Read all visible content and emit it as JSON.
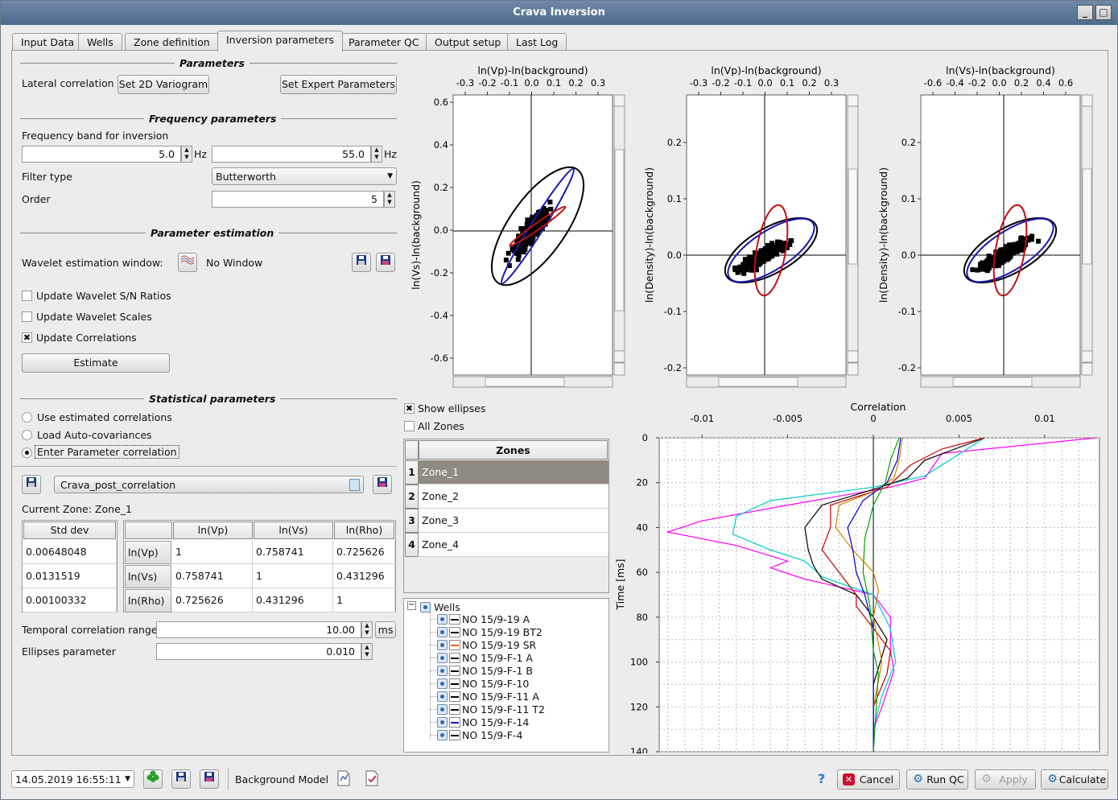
{
  "window": {
    "title": "Crava Inversion"
  },
  "tabs": [
    "Input Data",
    "Wells",
    "Zone definition",
    "Inversion parameters",
    "Parameter QC",
    "Output setup",
    "Last Log"
  ],
  "parameters": {
    "title": "Parameters",
    "lateral_label": "Lateral correlation",
    "variogram_btn": "Set 2D Variogram",
    "expert_btn": "Set Expert Parameters"
  },
  "frequency": {
    "title": "Frequency parameters",
    "band_label": "Frequency band for inversion",
    "low": "5.0",
    "high": "55.0",
    "unit": "Hz",
    "filter_label": "Filter type",
    "filter_value": "Butterworth",
    "order_label": "Order",
    "order_value": "5"
  },
  "estimation": {
    "title": "Parameter estimation",
    "wavelet_label": "Wavelet estimation window:",
    "wavelet_value": "No Window",
    "cb_sn": "Update Wavelet S/N Ratios",
    "cb_scales": "Update Wavelet Scales",
    "cb_corr": "Update Correlations",
    "estimate_btn": "Estimate"
  },
  "statistical": {
    "title": "Statistical parameters",
    "r1": "Use estimated correlations",
    "r2": "Load Auto-covariances",
    "r3": "Enter Parameter correlation",
    "file": "Crava_post_correlation",
    "current_zone": "Current Zone: Zone_1",
    "std_header": "Std dev",
    "std": [
      "0.00648048",
      "0.0131519",
      "0.00100332"
    ],
    "corr_headers": [
      "ln(Vp)",
      "ln(Vs)",
      "ln(Rho)"
    ],
    "row_headers": [
      "ln(Vp)",
      "ln(Vs)",
      "ln(Rho)"
    ],
    "corr": [
      [
        "1",
        "0.758741",
        "0.725626"
      ],
      [
        "0.758741",
        "1",
        "0.431296"
      ],
      [
        "0.725626",
        "0.431296",
        "1"
      ]
    ],
    "temporal_label": "Temporal correlation range",
    "temporal_value": "10.00",
    "temporal_unit": "ms",
    "ellipses_label": "Ellipses parameter",
    "ellipses_value": "0.010"
  },
  "scatter": [
    {
      "title": "ln(Vp)-ln(background)",
      "ylabel": "ln(Vs)-ln(background)",
      "xticks": [
        "-0.3",
        "-0.2",
        "-0.1",
        "0.0",
        "0.1",
        "0.2",
        "0.3"
      ],
      "yticks": [
        "0.6",
        "0.4",
        "0.2",
        "0.0",
        "-0.2",
        "-0.4",
        "-0.6"
      ]
    },
    {
      "title": "ln(Vp)-ln(background)",
      "ylabel": "ln(Density)-ln(background)",
      "xticks": [
        "-0.3",
        "-0.2",
        "-0.1",
        "0.0",
        "0.1",
        "0.2",
        "0.3"
      ],
      "yticks": [
        "0.2",
        "0.1",
        "0.0",
        "-0.1",
        "-0.2"
      ]
    },
    {
      "title": "ln(Vs)-ln(background)",
      "ylabel": "ln(Density)-ln(background)",
      "xticks": [
        "-0.6",
        "-0.4",
        "-0.2",
        "0.0",
        "0.2",
        "0.4",
        "0.6"
      ],
      "yticks": [
        "0.2",
        "0.1",
        "0.0",
        "-0.1",
        "-0.2"
      ]
    }
  ],
  "show_ellipses": "Show ellipses",
  "all_zones": "All Zones",
  "zones": {
    "header": "Zones",
    "items": [
      "Zone_1",
      "Zone_2",
      "Zone_3",
      "Zone_4"
    ],
    "selected": 0
  },
  "wells": {
    "root": "Wells",
    "items": [
      {
        "name": "NO 15/9-19 A",
        "color": "#000000"
      },
      {
        "name": "NO 15/9-19 BT2",
        "color": "#000000"
      },
      {
        "name": "NO 15/9-19 SR",
        "color": "#e06010"
      },
      {
        "name": "NO 15/9-F-1 A",
        "color": "#000000"
      },
      {
        "name": "NO 15/9-F-1 B",
        "color": "#000000"
      },
      {
        "name": "NO 15/9-F-10",
        "color": "#000000"
      },
      {
        "name": "NO 15/9-F-11 A",
        "color": "#000000"
      },
      {
        "name": "NO 15/9-F-11 T2",
        "color": "#000000"
      },
      {
        "name": "NO 15/9-F-14",
        "color": "#1010d0"
      },
      {
        "name": "NO 15/9-F-4",
        "color": "#000000"
      }
    ]
  },
  "chart_data": {
    "type": "line",
    "title": "Correlation",
    "ylabel": "Time [ms]",
    "xlim": [
      -0.0125,
      0.0132
    ],
    "ylim": [
      0,
      140
    ],
    "xticks": [
      "-0.01",
      "-0.005",
      "0",
      "0.005",
      "0.01"
    ],
    "yticks": [
      "0",
      "20",
      "40",
      "60",
      "80",
      "100",
      "120",
      "140"
    ],
    "series": [
      {
        "color": "#ff00ff",
        "values": [
          [
            0.013,
            0
          ],
          [
            0.004,
            7
          ],
          [
            0.003,
            18
          ],
          [
            0.001,
            22
          ],
          [
            -0.005,
            30
          ],
          [
            -0.01,
            37
          ],
          [
            -0.012,
            42
          ],
          [
            -0.008,
            48
          ],
          [
            -0.005,
            55
          ],
          [
            -0.006,
            58
          ],
          [
            -0.004,
            63
          ],
          [
            0.0,
            70
          ],
          [
            0.001,
            80
          ],
          [
            0.001,
            95
          ],
          [
            0.0012,
            104
          ],
          [
            0.0005,
            120
          ],
          [
            0.0,
            130
          ],
          [
            0.0,
            140
          ]
        ]
      },
      {
        "color": "#00c8c8",
        "values": [
          [
            0.0065,
            0
          ],
          [
            0.003,
            17
          ],
          [
            0.0,
            22
          ],
          [
            -0.006,
            28
          ],
          [
            -0.008,
            35
          ],
          [
            -0.0082,
            43
          ],
          [
            -0.006,
            50
          ],
          [
            -0.004,
            55
          ],
          [
            -0.003,
            62
          ],
          [
            0.0,
            70
          ],
          [
            0.001,
            85
          ],
          [
            0.0013,
            100
          ],
          [
            0.0005,
            115
          ],
          [
            0.0,
            130
          ],
          [
            0.0,
            140
          ]
        ]
      },
      {
        "color": "#000000",
        "values": [
          [
            0.0065,
            0
          ],
          [
            0.003,
            10
          ],
          [
            0.002,
            18
          ],
          [
            0.0,
            23
          ],
          [
            -0.003,
            30
          ],
          [
            -0.004,
            40
          ],
          [
            -0.0038,
            50
          ],
          [
            -0.0035,
            57
          ],
          [
            -0.003,
            63
          ],
          [
            -0.001,
            70
          ],
          [
            0.0,
            80
          ],
          [
            0.0008,
            90
          ],
          [
            0.0,
            110
          ],
          [
            0.0,
            140
          ]
        ]
      },
      {
        "color": "#c80000",
        "values": [
          [
            0.0065,
            0
          ],
          [
            0.004,
            5
          ],
          [
            0.0022,
            12
          ],
          [
            0.0008,
            22
          ],
          [
            -0.0025,
            30
          ],
          [
            -0.0025,
            40
          ],
          [
            -0.003,
            50
          ],
          [
            -0.002,
            60
          ],
          [
            -0.001,
            70
          ],
          [
            -0.001,
            75
          ],
          [
            0.0,
            85
          ],
          [
            0.001,
            95
          ],
          [
            0.0008,
            105
          ],
          [
            0.0,
            120
          ],
          [
            0.0,
            140
          ]
        ]
      },
      {
        "color": "#d08000",
        "values": [
          [
            0.0017,
            0
          ],
          [
            0.0015,
            10
          ],
          [
            0.0012,
            18
          ],
          [
            0.0,
            24
          ],
          [
            -0.002,
            30
          ],
          [
            -0.0022,
            40
          ],
          [
            -0.0012,
            50
          ],
          [
            0.0,
            60
          ],
          [
            0.0003,
            68
          ],
          [
            0.0,
            80
          ],
          [
            0.0005,
            100
          ],
          [
            0.0,
            120
          ],
          [
            0.0,
            140
          ]
        ]
      },
      {
        "color": "#0000c8",
        "values": [
          [
            0.0016,
            0
          ],
          [
            0.0014,
            10
          ],
          [
            0.0008,
            20
          ],
          [
            -0.0006,
            28
          ],
          [
            -0.0015,
            40
          ],
          [
            -0.0012,
            50
          ],
          [
            -0.001,
            60
          ],
          [
            -0.0005,
            70
          ],
          [
            0.0,
            85
          ],
          [
            0.0,
            110
          ],
          [
            0.0,
            140
          ]
        ]
      },
      {
        "color": "#00a000",
        "values": [
          [
            0.0015,
            0
          ],
          [
            0.001,
            10
          ],
          [
            0.0007,
            20
          ],
          [
            0.0,
            30
          ],
          [
            -0.0005,
            45
          ],
          [
            -0.0006,
            60
          ],
          [
            -0.0002,
            75
          ],
          [
            0.0,
            95
          ],
          [
            0.0003,
            105
          ],
          [
            0.0,
            140
          ]
        ]
      }
    ]
  },
  "bottom": {
    "timestamp": "14.05.2019 16:55:11",
    "bg_label": "Background Model",
    "cancel": "Cancel",
    "run_qc": "Run QC",
    "apply": "Apply",
    "calculate": "Calculate"
  }
}
